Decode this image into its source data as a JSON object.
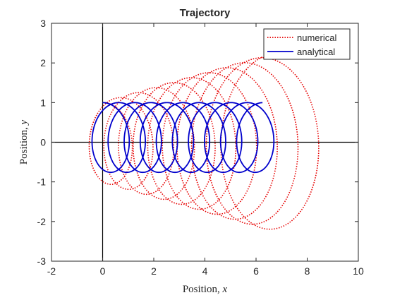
{
  "chart_data": {
    "type": "line",
    "title": "Trajectory",
    "xlabel": "Position, x",
    "ylabel": "Position, y",
    "xlim": [
      -2,
      10
    ],
    "ylim": [
      -3,
      3
    ],
    "xticks": [
      -2,
      0,
      2,
      4,
      6,
      8,
      10
    ],
    "yticks": [
      -3,
      -2,
      -1,
      0,
      1,
      2,
      3
    ],
    "grid": false,
    "legend_position": "top-right",
    "series": [
      {
        "name": "numerical",
        "color": "#e60000",
        "style": "dotted",
        "t_max": 62.8,
        "x0": 0,
        "y0": 1,
        "vx0": 0.11,
        "vy0": 0.0,
        "spiral_growth": 0.02
      },
      {
        "name": "analytical",
        "color": "#0000cc",
        "style": "solid",
        "t_max": 62.8,
        "x0": 0,
        "y0": 1,
        "vx0": 0.1,
        "vy0": 0.0,
        "spiral_growth": 0.0
      }
    ]
  }
}
